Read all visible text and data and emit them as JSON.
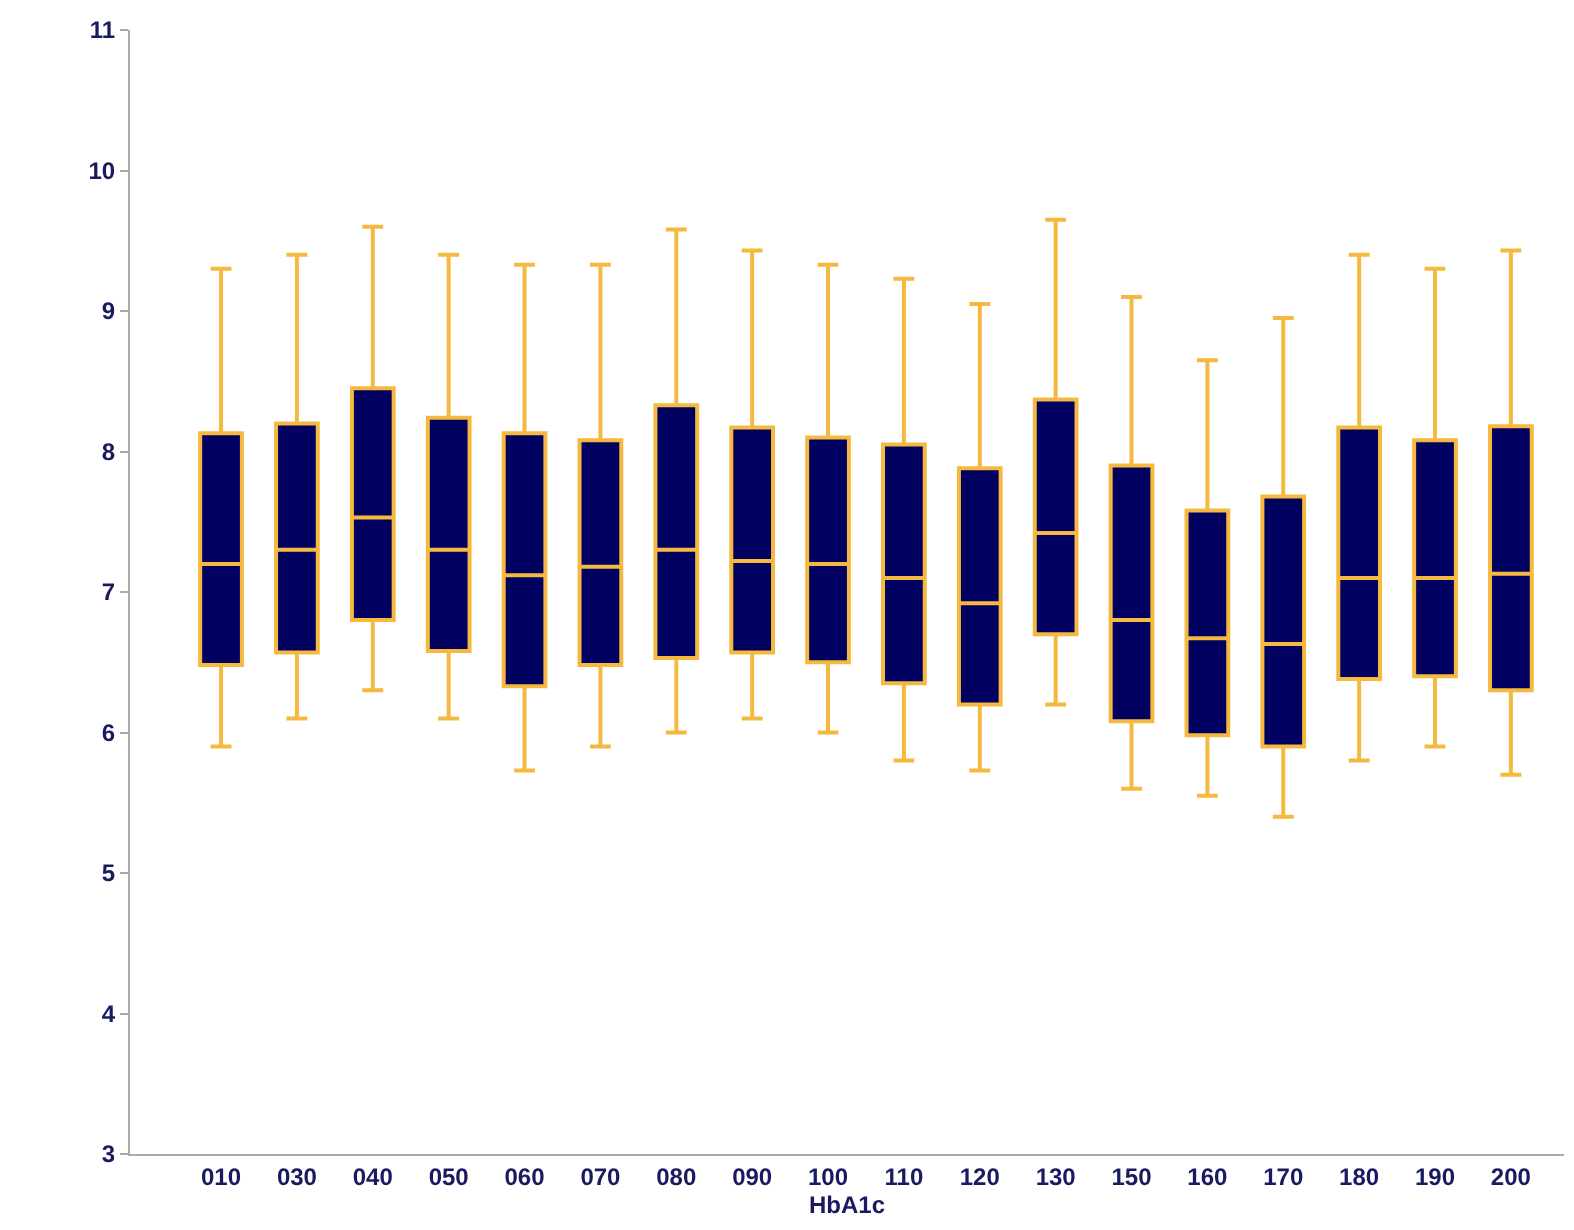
{
  "chart_data": {
    "type": "box",
    "xlabel": "HbA1c",
    "categories": [
      "010",
      "030",
      "040",
      "050",
      "060",
      "070",
      "080",
      "090",
      "100",
      "110",
      "120",
      "130",
      "150",
      "160",
      "170",
      "180",
      "190",
      "200"
    ],
    "series": [
      {
        "color": "#000060",
        "boxes": [
          {
            "low": 5.9,
            "q1": 6.48,
            "median": 7.2,
            "q3": 8.13,
            "high": 9.3
          },
          {
            "low": 6.1,
            "q1": 6.57,
            "median": 7.3,
            "q3": 8.2,
            "high": 9.4
          },
          {
            "low": 6.3,
            "q1": 6.8,
            "median": 7.53,
            "q3": 8.45,
            "high": 9.6
          },
          {
            "low": 6.1,
            "q1": 6.58,
            "median": 7.3,
            "q3": 8.24,
            "high": 9.4
          },
          {
            "low": 5.73,
            "q1": 6.33,
            "median": 7.12,
            "q3": 8.13,
            "high": 9.33
          },
          {
            "low": 5.9,
            "q1": 6.48,
            "median": 7.18,
            "q3": 8.08,
            "high": 9.33
          },
          {
            "low": 6.0,
            "q1": 6.53,
            "median": 7.3,
            "q3": 8.33,
            "high": 9.58
          },
          {
            "low": 6.1,
            "q1": 6.57,
            "median": 7.22,
            "q3": 8.17,
            "high": 9.43
          },
          {
            "low": 6.0,
            "q1": 6.5,
            "median": 7.2,
            "q3": 8.1,
            "high": 9.33
          },
          {
            "low": 5.8,
            "q1": 6.35,
            "median": 7.1,
            "q3": 8.05,
            "high": 9.23
          },
          {
            "low": 5.73,
            "q1": 6.2,
            "median": 6.92,
            "q3": 7.88,
            "high": 9.05
          },
          {
            "low": 6.2,
            "q1": 6.7,
            "median": 7.42,
            "q3": 8.37,
            "high": 9.65
          },
          {
            "low": 5.6,
            "q1": 6.08,
            "median": 6.8,
            "q3": 7.9,
            "high": 9.1
          },
          {
            "low": 5.55,
            "q1": 5.98,
            "median": 6.67,
            "q3": 7.58,
            "high": 8.65
          },
          {
            "low": 5.4,
            "q1": 5.9,
            "median": 6.63,
            "q3": 7.68,
            "high": 8.95
          },
          {
            "low": 5.8,
            "q1": 6.38,
            "median": 7.1,
            "q3": 8.17,
            "high": 9.4
          },
          {
            "low": 5.9,
            "q1": 6.4,
            "median": 7.1,
            "q3": 8.08,
            "high": 9.3
          },
          {
            "low": 5.7,
            "q1": 6.3,
            "median": 7.13,
            "q3": 8.18,
            "high": 9.43
          }
        ]
      }
    ],
    "ylim": [
      3,
      11
    ],
    "yticks": [
      3,
      4,
      5,
      6,
      7,
      8,
      9,
      10,
      11
    ]
  }
}
